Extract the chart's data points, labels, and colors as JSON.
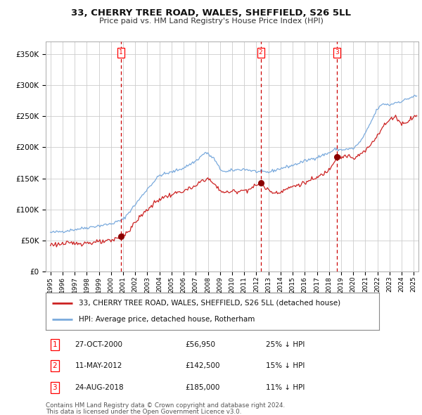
{
  "title": "33, CHERRY TREE ROAD, WALES, SHEFFIELD, S26 5LL",
  "subtitle": "Price paid vs. HM Land Registry's House Price Index (HPI)",
  "legend_line1": "33, CHERRY TREE ROAD, WALES, SHEFFIELD, S26 5LL (detached house)",
  "legend_line2": "HPI: Average price, detached house, Rotherham",
  "transactions": [
    {
      "num": 1,
      "date": "27-OCT-2000",
      "date_val": 2000.82,
      "price": 56950,
      "pct": "25% ↓ HPI"
    },
    {
      "num": 2,
      "date": "11-MAY-2012",
      "date_val": 2012.36,
      "price": 142500,
      "pct": "15% ↓ HPI"
    },
    {
      "num": 3,
      "date": "24-AUG-2018",
      "date_val": 2018.64,
      "price": 185000,
      "pct": "11% ↓ HPI"
    }
  ],
  "footer_line1": "Contains HM Land Registry data © Crown copyright and database right 2024.",
  "footer_line2": "This data is licensed under the Open Government Licence v3.0.",
  "hpi_color": "#7aaadd",
  "price_color": "#cc2222",
  "bg_color": "#ffffff",
  "grid_color": "#cccccc",
  "vline_color_red": "#cc0000",
  "marker_color": "#8b0000",
  "ylim": [
    0,
    370000
  ],
  "yticks": [
    0,
    50000,
    100000,
    150000,
    200000,
    250000,
    300000,
    350000
  ],
  "xlim_start": 1994.6,
  "xlim_end": 2025.4
}
